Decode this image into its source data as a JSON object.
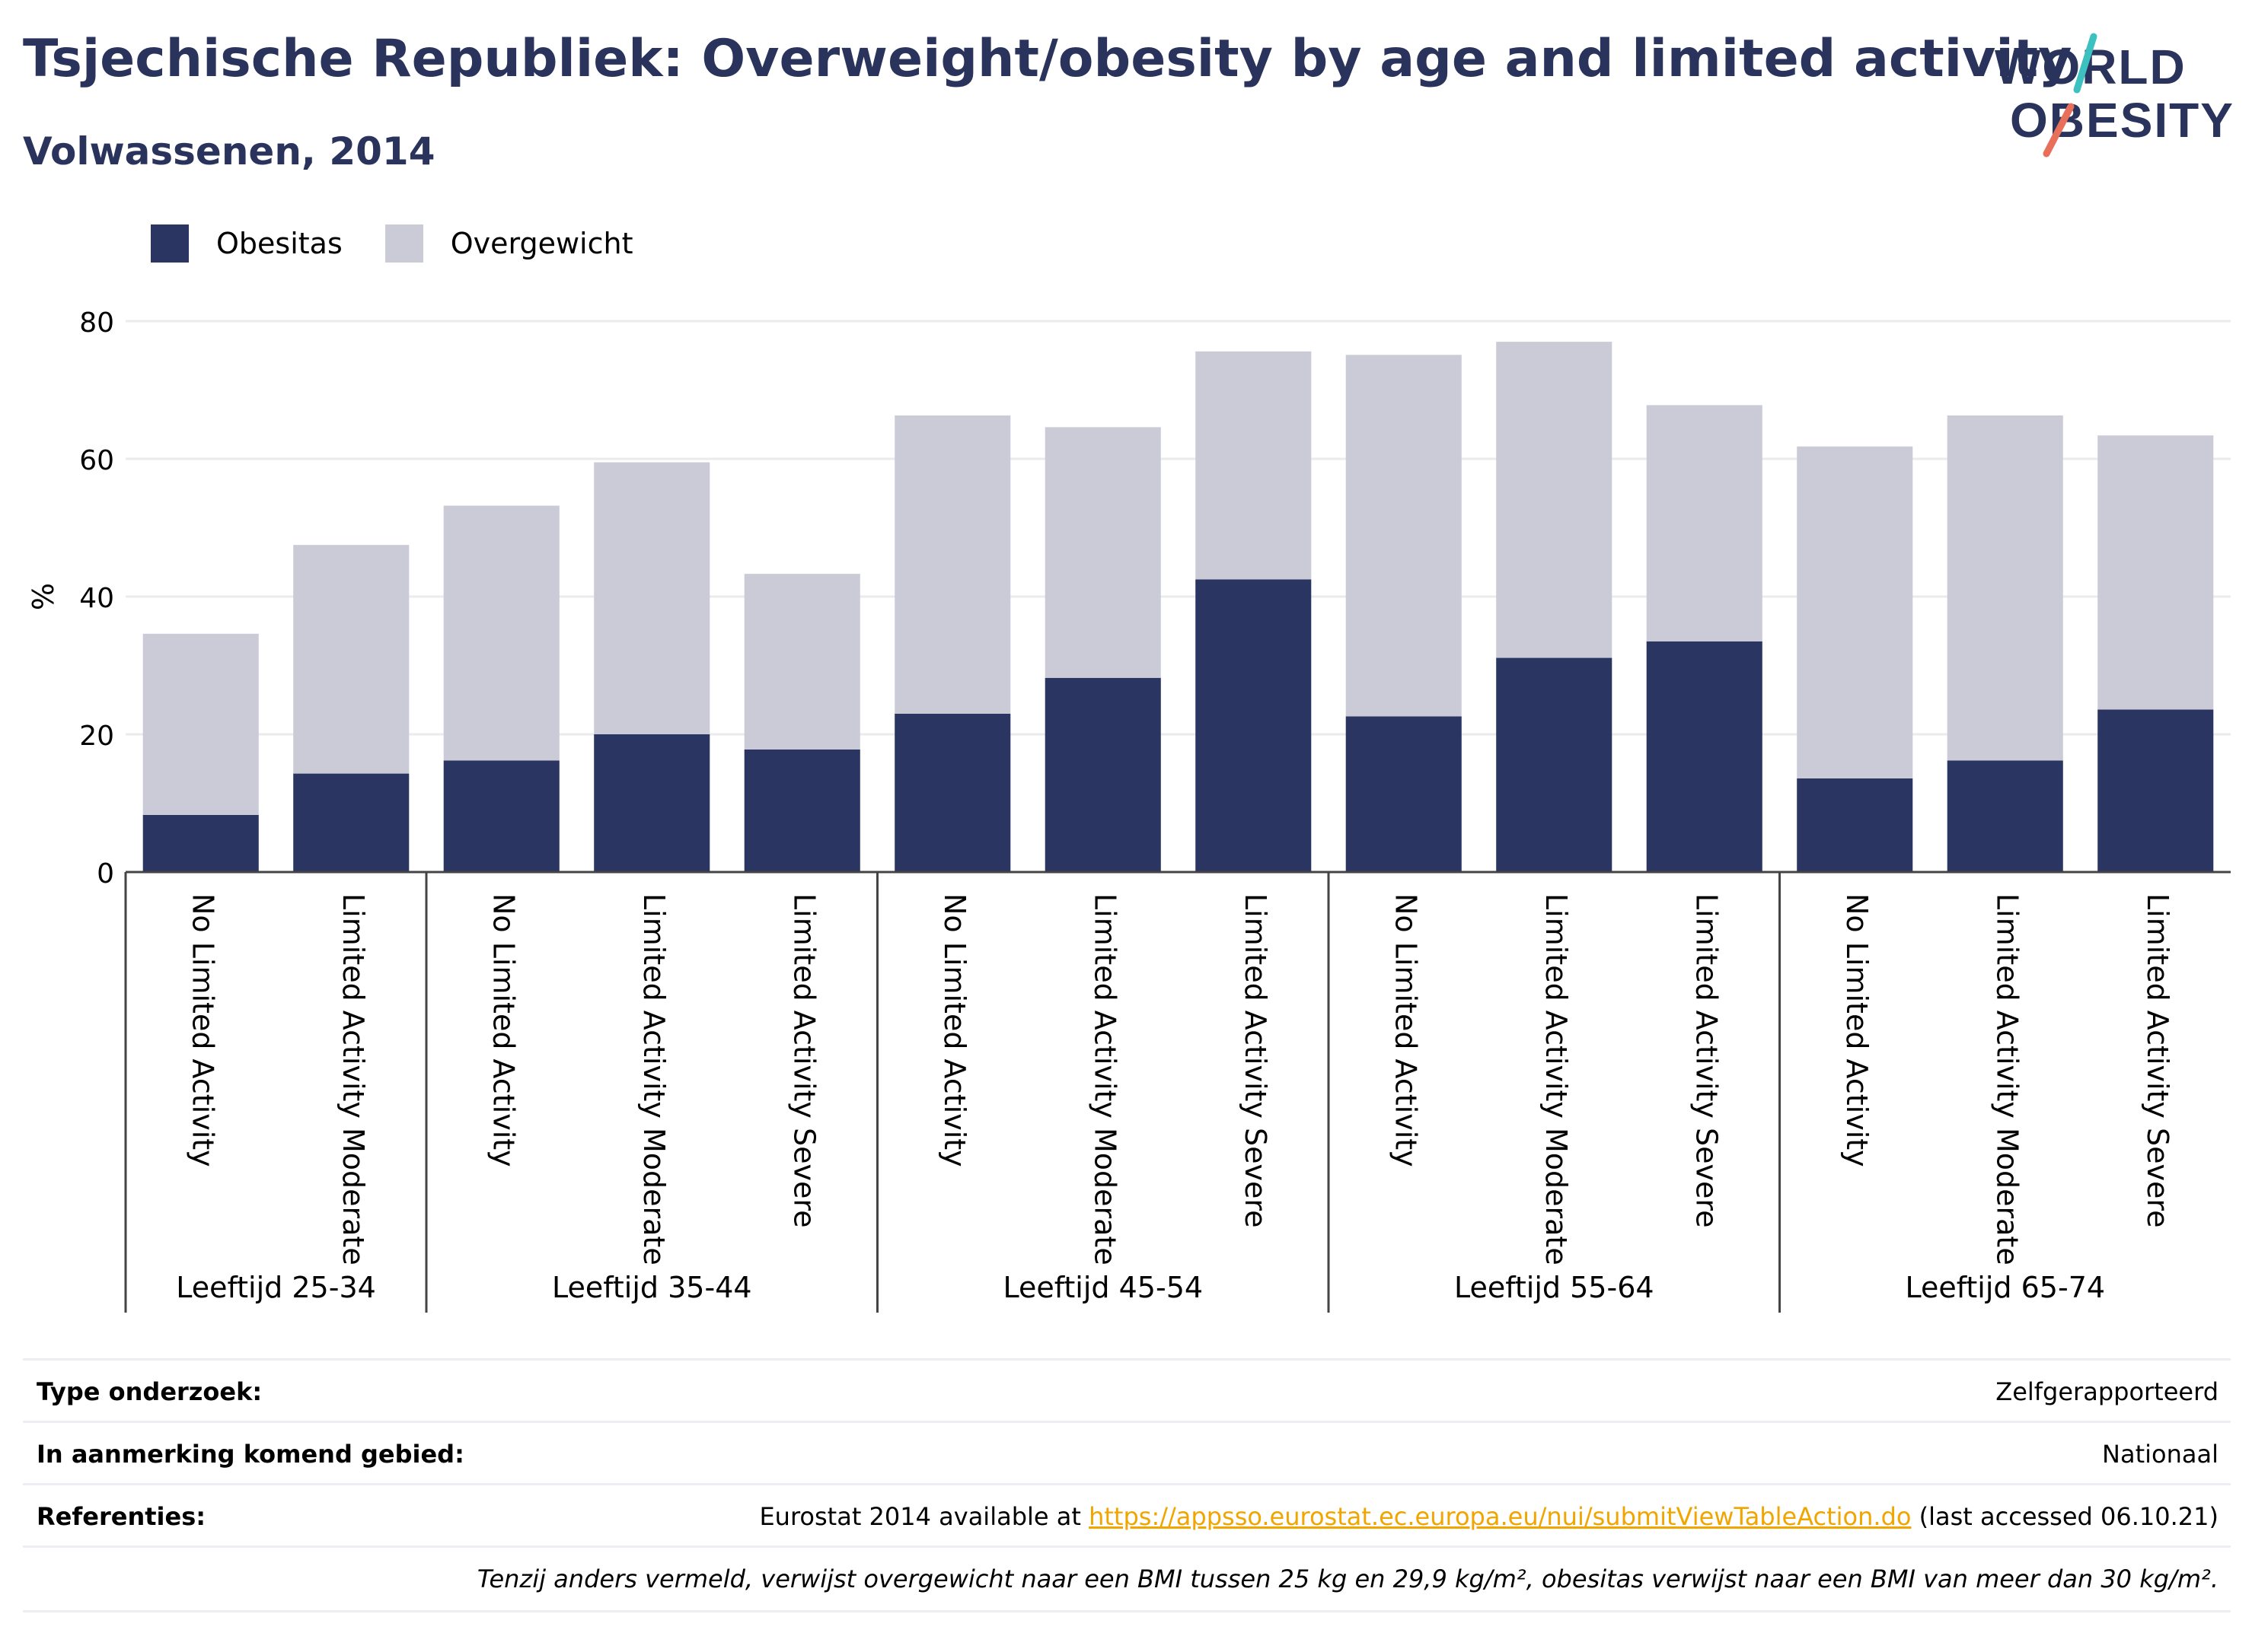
{
  "header": {
    "title": "Tsjechische Republiek: Overweight/obesity by age and limited activity",
    "subtitle": "Volwassenen, 2014"
  },
  "logo": {
    "line1": "WORLD",
    "line2": "OBESITY"
  },
  "legend": [
    {
      "label": "Obesitas",
      "color": "#2a3561"
    },
    {
      "label": "Overgewicht",
      "color": "#cacbd7"
    }
  ],
  "chart_data": {
    "type": "bar",
    "stacked": true,
    "ylabel": "%",
    "ylim": [
      0,
      80
    ],
    "yticks": [
      0,
      20,
      40,
      60,
      80
    ],
    "grid": true,
    "legend_position": "top-left",
    "groups": [
      {
        "label": "Leeftijd 25-34",
        "categories": [
          "No Limited Activity",
          "Limited Activity Moderate"
        ]
      },
      {
        "label": "Leeftijd 35-44",
        "categories": [
          "No Limited Activity",
          "Limited Activity Moderate",
          "Limited Activity Severe"
        ]
      },
      {
        "label": "Leeftijd 45-54",
        "categories": [
          "No Limited Activity",
          "Limited Activity Moderate",
          "Limited Activity Severe"
        ]
      },
      {
        "label": "Leeftijd 55-64",
        "categories": [
          "No Limited Activity",
          "Limited Activity Moderate",
          "Limited Activity Severe"
        ]
      },
      {
        "label": "Leeftijd 65-74",
        "categories": [
          "No Limited Activity",
          "Limited Activity Moderate",
          "Limited Activity Severe"
        ]
      }
    ],
    "series": [
      {
        "name": "Obesitas",
        "color": "#2a3561",
        "values": [
          8.3,
          14.3,
          16.2,
          20.0,
          17.8,
          23.0,
          28.2,
          42.5,
          22.6,
          31.1,
          33.5,
          13.6,
          16.2,
          23.6
        ]
      },
      {
        "name": "Overgewicht",
        "color": "#cacbd7",
        "values": [
          26.3,
          33.2,
          37.0,
          39.5,
          25.5,
          43.3,
          36.4,
          33.1,
          52.5,
          45.9,
          34.3,
          48.2,
          50.1,
          39.8
        ]
      }
    ]
  },
  "meta": {
    "survey_type_label": "Type onderzoek:",
    "survey_type_value": "Zelfgerapporteerd",
    "area_label": "In aanmerking komend gebied:",
    "area_value": "Nationaal",
    "refs_label": "Referenties:",
    "refs_prefix": "Eurostat 2014 available at ",
    "refs_link": "https://appsso.eurostat.ec.europa.eu/nui/submitViewTableAction.do",
    "refs_suffix": " (last accessed 06.10.21)",
    "note": "Tenzij anders vermeld, verwijst overgewicht naar een BMI tussen 25 kg en 29,9 kg/m², obesitas verwijst naar een BMI van meer dan 30 kg/m²."
  }
}
